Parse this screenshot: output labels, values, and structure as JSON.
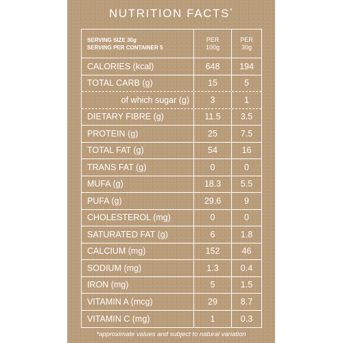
{
  "title": "NUTRITION FACTS",
  "title_mark": "*",
  "header": {
    "serving_size": "SERVING SIZE 30g",
    "servings_per_container": "SERVING PER CONTAINER 5",
    "col1_top": "PER",
    "col1_bottom": "100g",
    "col2_top": "PER",
    "col2_bottom": "30g"
  },
  "rows": [
    {
      "label": "CALORIES (kcal)",
      "per100": "648",
      "per30": "194"
    },
    {
      "label": "TOTAL CARB (g)",
      "per100": "15",
      "per30": "5"
    },
    {
      "label": "of which sugar (g)",
      "per100": "3",
      "per30": "1"
    },
    {
      "label": "DIETARY FIBRE (g)",
      "per100": "11.5",
      "per30": "3.5"
    },
    {
      "label": "PROTEIN (g)",
      "per100": "25",
      "per30": "7.5"
    },
    {
      "label": "TOTAL FAT (g)",
      "per100": "54",
      "per30": "16"
    },
    {
      "label": "TRANS FAT (g)",
      "per100": "0",
      "per30": "0"
    },
    {
      "label": "MUFA (g)",
      "per100": "18.3",
      "per30": "5.5"
    },
    {
      "label": "PUFA (g)",
      "per100": "29.6",
      "per30": "9"
    },
    {
      "label": "CHOLESTEROL (mg)",
      "per100": "0",
      "per30": "0"
    },
    {
      "label": "SATURATED FAT (g)",
      "per100": "6",
      "per30": "1.8"
    },
    {
      "label": "CALCIUM (mg)",
      "per100": "152",
      "per30": "46"
    },
    {
      "label": "SODIUM (mg)",
      "per100": "1.3",
      "per30": "0.4"
    },
    {
      "label": "IRON (mg)",
      "per100": "5",
      "per30": "1.5"
    },
    {
      "label": "VITAMIN A (mcg)",
      "per100": "29",
      "per30": "8.7"
    },
    {
      "label": "VITAMIN C (mg)",
      "per100": "1",
      "per30": "0.3"
    }
  ],
  "footnote": "*approximate values and subject to natural variation",
  "colors": {
    "background": "#b99c7a",
    "text": "#ffffff"
  }
}
